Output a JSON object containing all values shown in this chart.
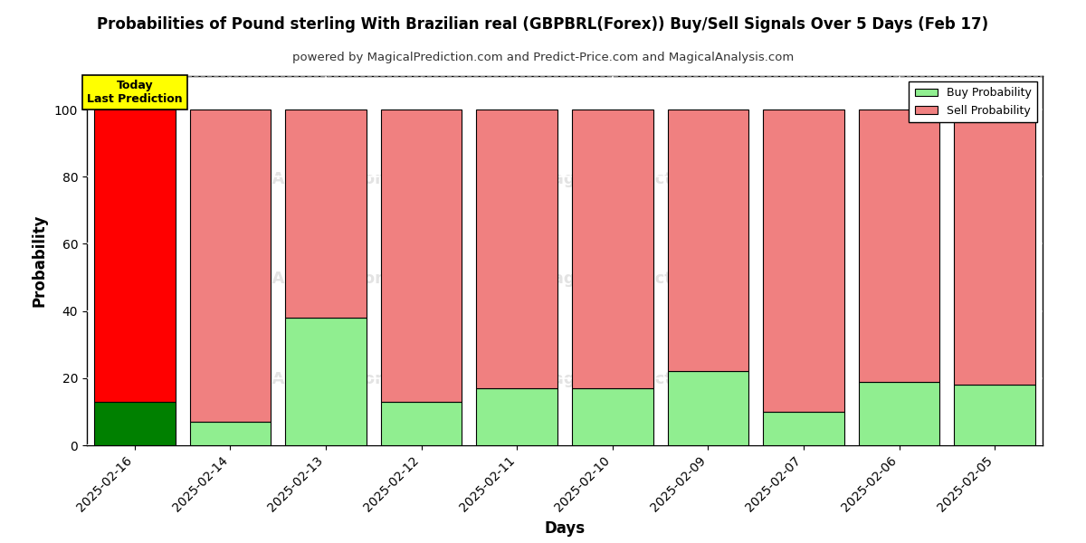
{
  "title": "Probabilities of Pound sterling With Brazilian real (GBPBRL(Forex)) Buy/Sell Signals Over 5 Days (Feb 17)",
  "subtitle": "powered by MagicalPrediction.com and Predict-Price.com and MagicalAnalysis.com",
  "xlabel": "Days",
  "ylabel": "Probability",
  "dates": [
    "2025-02-16",
    "2025-02-14",
    "2025-02-13",
    "2025-02-12",
    "2025-02-11",
    "2025-02-10",
    "2025-02-09",
    "2025-02-07",
    "2025-02-06",
    "2025-02-05"
  ],
  "buy_values": [
    13,
    7,
    38,
    13,
    17,
    17,
    22,
    10,
    19,
    18
  ],
  "sell_values": [
    87,
    93,
    62,
    87,
    83,
    83,
    78,
    90,
    81,
    82
  ],
  "buy_color_first": "#008000",
  "buy_color_rest": "#90EE90",
  "sell_color_first": "#FF0000",
  "sell_color_rest": "#F08080",
  "bar_edge_color": "#000000",
  "ylim": [
    0,
    110
  ],
  "yticks": [
    0,
    20,
    40,
    60,
    80,
    100
  ],
  "grid_color": "#ffffff",
  "bg_color": "#ffffff",
  "today_box_color": "#FFFF00",
  "today_box_text": "Today\nLast Prediction",
  "dashed_line_y": 110,
  "legend_buy_label": "Buy Probability",
  "legend_sell_label": "Sell Probability",
  "bar_width": 0.85
}
